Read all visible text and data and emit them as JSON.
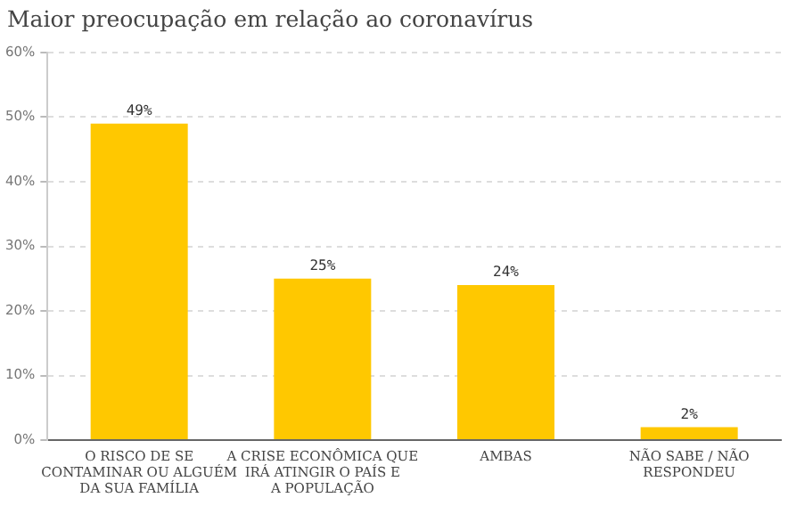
{
  "chart_data": {
    "type": "bar",
    "title": "Maior preocupação em relação ao coronavírus",
    "categories": [
      "O RISCO DE SE CONTAMINAR OU ALGUÉM DA SUA FAMÍLIA",
      "A CRISE ECONÔMICA QUE IRÁ ATINGIR O PAÍS E A POPULAÇÃO",
      "AMBAS",
      "NÃO SABE / NÃO RESPONDEU"
    ],
    "values": [
      49,
      25,
      24,
      2
    ],
    "value_labels": [
      "49%",
      "25%",
      "24%",
      "2%"
    ],
    "color": "#ffc800",
    "ylim": [
      0,
      60
    ],
    "yticks": [
      {
        "value": 0,
        "label": "0%"
      },
      {
        "value": 10,
        "label": "10%"
      },
      {
        "value": 20,
        "label": "20%"
      },
      {
        "value": 30,
        "label": "30%"
      },
      {
        "value": 40,
        "label": "40%"
      },
      {
        "value": 50,
        "label": "50%"
      },
      {
        "value": 60,
        "label": "60%"
      }
    ],
    "grid": "y"
  }
}
